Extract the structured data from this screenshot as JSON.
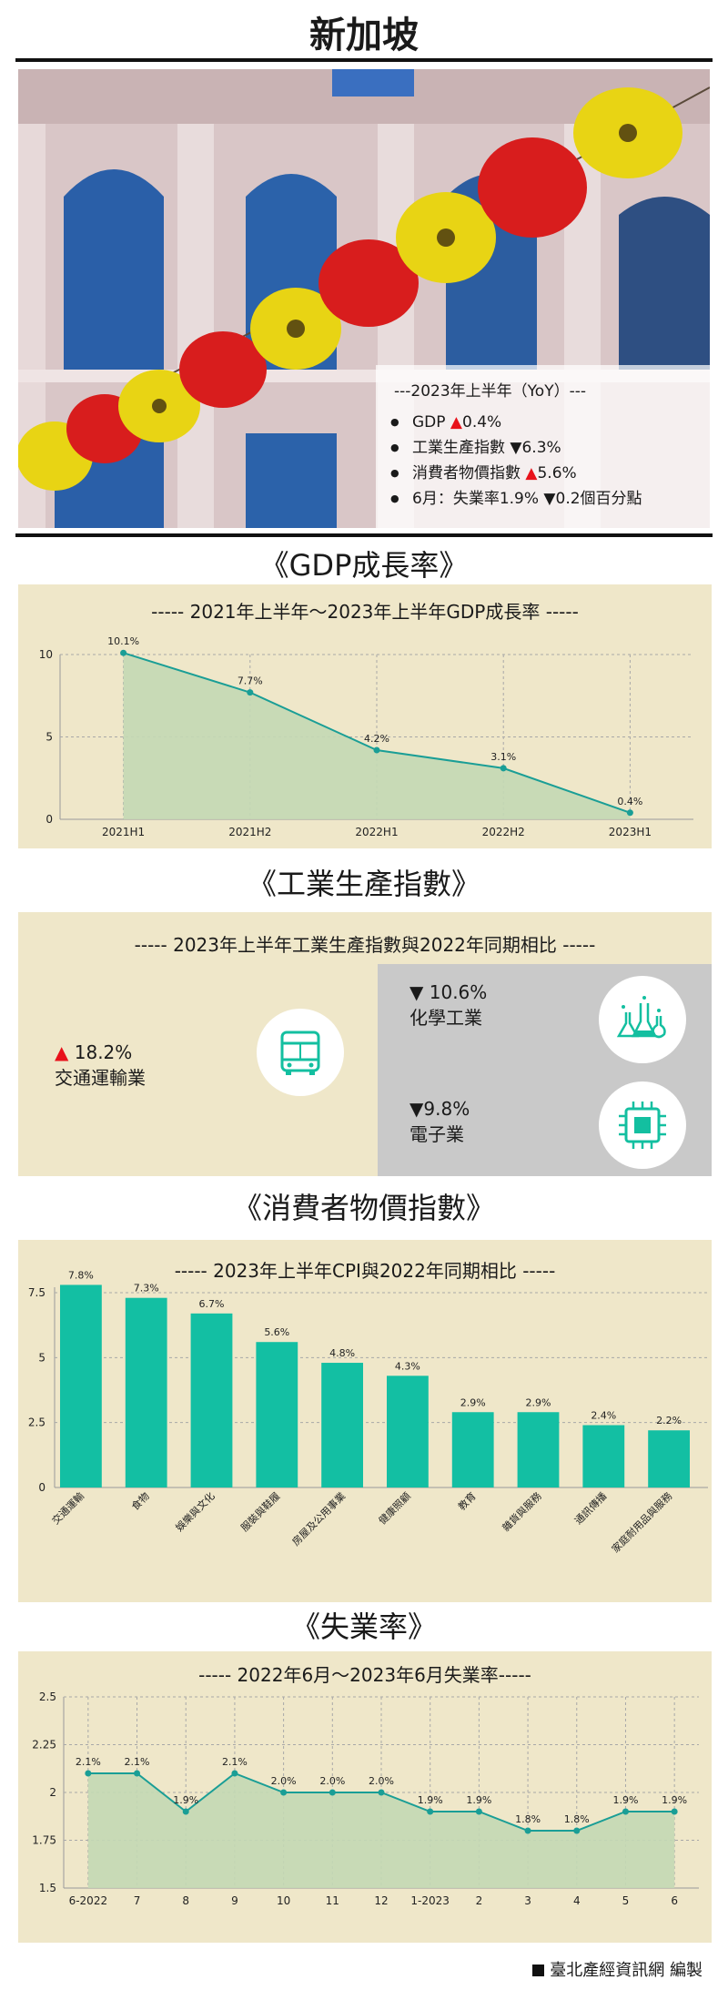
{
  "page": {
    "title": "新加坡",
    "footer_text": "臺北產經資訊網 編製"
  },
  "summary": {
    "heading": "---2023年上半年（YoY）---",
    "items": [
      {
        "label": "GDP ",
        "mark": "▲",
        "value": "0.4%",
        "dir": "up"
      },
      {
        "label": "工業生產指數 ",
        "mark": "▼",
        "value": "6.3%",
        "dir": "down"
      },
      {
        "label": "消費者物價指數 ",
        "mark": "▲",
        "value": "5.6%",
        "dir": "up"
      },
      {
        "label": "6月：失業率1.9% ",
        "mark": "▼",
        "value": "0.2個百分點",
        "dir": "down"
      }
    ]
  },
  "sections": {
    "gdp": "《GDP成長率》",
    "industry": "《工業生產指數》",
    "cpi": "《消費者物價指數》",
    "unemployment": "《失業率》"
  },
  "industry": {
    "title": "----- 2023年上半年工業生產指數與2022年同期相比 -----",
    "items": [
      {
        "mark": "▲",
        "value": " 18.2%",
        "name": "交通運輸業",
        "icon": "bus-icon"
      },
      {
        "mark": "▼",
        "value": " 10.6%",
        "name": "化學工業",
        "icon": "flask-icon"
      },
      {
        "mark": "▼",
        "value": "9.8%",
        "name": "電子業",
        "icon": "chip-icon"
      }
    ],
    "colors": {
      "up": "#e8111a",
      "panel_gray": "#c9c9c9",
      "icon": "#13bfa0"
    }
  },
  "chart_data": [
    {
      "type": "area",
      "title": "----- 2021年上半年～2023年上半年GDP成長率 -----",
      "categories": [
        "2021H1",
        "2021H2",
        "2022H1",
        "2022H2",
        "2023H1"
      ],
      "values": [
        10.1,
        7.7,
        4.2,
        3.1,
        0.4
      ],
      "data_labels": [
        "10.1%",
        "7.7%",
        "4.2%",
        "3.1%",
        "0.4%"
      ],
      "ylim": [
        0,
        10
      ],
      "yticks": [
        "0",
        "5",
        "10"
      ],
      "grid": true,
      "colors": {
        "line": "#1a9e96",
        "fill": "#c3d8b4"
      }
    },
    {
      "type": "bar",
      "title": "----- 2023年上半年CPI與2022年同期相比 -----",
      "categories": [
        "交通運輸",
        "食物",
        "娛樂與文化",
        "服裝與鞋履",
        "房屋及公用事業",
        "健康照顧",
        "教育",
        "雜貨與服務",
        "通訊傳播",
        "家庭耐用品與服務"
      ],
      "values": [
        7.8,
        7.3,
        6.7,
        5.6,
        4.8,
        4.3,
        2.9,
        2.9,
        2.4,
        2.2
      ],
      "data_labels": [
        "7.8%",
        "7.3%",
        "6.7%",
        "5.6%",
        "4.8%",
        "4.3%",
        "2.9%",
        "2.9%",
        "2.4%",
        "2.2%"
      ],
      "ylim": [
        0,
        7.5
      ],
      "yticks": [
        "0",
        "2.5",
        "5",
        "7.5"
      ],
      "grid": true,
      "colors": {
        "bar": "#13bfa3"
      }
    },
    {
      "type": "area",
      "title": "----- 2022年6月～2023年6月失業率-----",
      "categories": [
        "6-2022",
        "7",
        "8",
        "9",
        "10",
        "11",
        "12",
        "1-2023",
        "2",
        "3",
        "4",
        "5",
        "6"
      ],
      "values": [
        2.1,
        2.1,
        1.9,
        2.1,
        2.0,
        2.0,
        2.0,
        1.9,
        1.9,
        1.8,
        1.8,
        1.9,
        1.9
      ],
      "data_labels": [
        "2.1%",
        "2.1%",
        "1.9%",
        "2.1%",
        "2.0%",
        "2.0%",
        "2.0%",
        "1.9%",
        "1.9%",
        "1.8%",
        "1.8%",
        "1.9%",
        "1.9%"
      ],
      "ylim": [
        1.5,
        2.5
      ],
      "yticks": [
        "1.5",
        "1.75",
        "2",
        "2.25",
        "2.5"
      ],
      "grid": true,
      "colors": {
        "line": "#1a9e96",
        "fill": "#c3d8b4"
      }
    }
  ]
}
